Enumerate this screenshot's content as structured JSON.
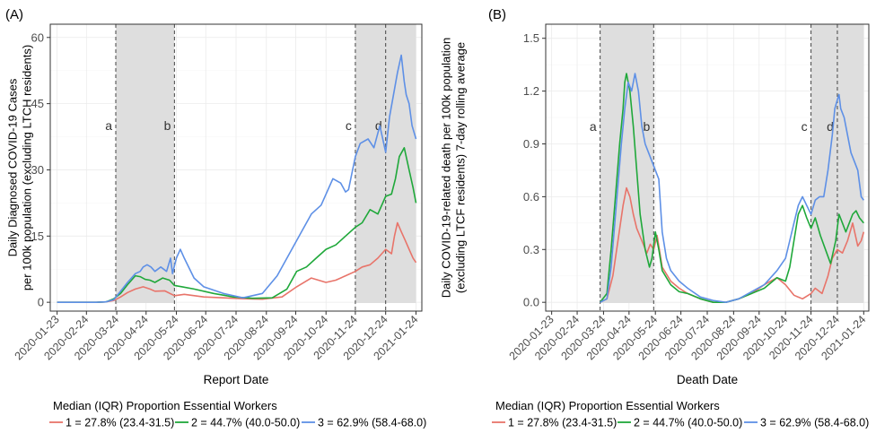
{
  "colors": {
    "g1": "#E8746A",
    "g2": "#1FA83A",
    "g3": "#5E90E6",
    "shade": "#DEDEDE",
    "grid": "#EBEBEB",
    "axis": "#333333"
  },
  "chart_data": [
    {
      "type": "line",
      "panel_label": "(A)",
      "title": "",
      "xlabel": "Report Date",
      "ylabel_line1": "Daily Diagnosed COVID-19 Cases",
      "ylabel_line2": "per 100k population (excluding LTCH residents)",
      "ylim": [
        -2,
        63
      ],
      "yticks": [
        0,
        15,
        30,
        45,
        60
      ],
      "ytick_labels": [
        "0",
        "15",
        "30",
        "45",
        "60"
      ],
      "xlim": [
        -7,
        373
      ],
      "xticks_days": [
        0,
        30,
        61,
        91,
        122,
        152,
        183,
        214,
        244,
        275,
        305,
        336,
        367
      ],
      "xtick_labels": [
        "2020-01-23",
        "2020-02-24",
        "2020-03-24",
        "2020-04-24",
        "2020-05-24",
        "2020-06-24",
        "2020-07-24",
        "2020-08-24",
        "2020-09-24",
        "2020-10-24",
        "2020-11-24",
        "2020-12-24",
        "2021-01-24"
      ],
      "shaded_regions": [
        [
          60,
          120
        ],
        [
          305,
          367
        ]
      ],
      "event_lines": [
        {
          "day": 60,
          "label": "a"
        },
        {
          "day": 120,
          "label": "b"
        },
        {
          "day": 305,
          "label": "c"
        },
        {
          "day": 336,
          "label": "d"
        }
      ],
      "event_label_y": 40,
      "legend_title": "Median (IQR) Proportion Essential Workers",
      "legend_position": "bottom",
      "series": [
        {
          "name": "1 = 27.8% (23.4-31.5)",
          "color_key": "g1",
          "x": [
            0,
            40,
            50,
            58,
            65,
            72,
            80,
            88,
            95,
            100,
            110,
            120,
            130,
            150,
            170,
            190,
            210,
            230,
            245,
            260,
            275,
            285,
            295,
            305,
            312,
            320,
            328,
            336,
            342,
            345,
            348,
            352,
            356,
            360,
            364,
            367
          ],
          "y": [
            0,
            0,
            0.1,
            0.4,
            1.2,
            2.2,
            3.0,
            3.5,
            3.0,
            2.5,
            2.6,
            1.5,
            1.8,
            1.2,
            1.0,
            0.8,
            0.7,
            1.2,
            3.5,
            5.5,
            4.5,
            5.0,
            6.0,
            7.0,
            8.0,
            8.5,
            10,
            12,
            11,
            15,
            18,
            16,
            14,
            12,
            10,
            9
          ]
        },
        {
          "name": "2 = 44.7% (40.0-50.0)",
          "color_key": "g2",
          "x": [
            0,
            40,
            50,
            58,
            65,
            72,
            80,
            85,
            90,
            95,
            100,
            108,
            115,
            120,
            128,
            140,
            160,
            180,
            200,
            220,
            235,
            245,
            255,
            265,
            275,
            285,
            295,
            305,
            312,
            320,
            328,
            336,
            342,
            346,
            350,
            355,
            360,
            364,
            367
          ],
          "y": [
            0,
            0,
            0.1,
            0.8,
            2.0,
            4.0,
            6.0,
            5.8,
            5.2,
            5.0,
            4.5,
            5.5,
            5.0,
            3.8,
            3.5,
            3.0,
            2.0,
            1.2,
            0.9,
            1.0,
            3.0,
            7.0,
            8.0,
            10.0,
            12.0,
            13.0,
            15.0,
            17.0,
            18.0,
            21.0,
            20.0,
            24.0,
            24.5,
            28.0,
            33.0,
            35.0,
            30.0,
            26.0,
            22.5
          ]
        },
        {
          "name": "3 = 62.9% (58.4-68.0)",
          "color_key": "g3",
          "x": [
            0,
            40,
            50,
            58,
            65,
            72,
            80,
            85,
            88,
            92,
            96,
            100,
            106,
            112,
            116,
            118,
            122,
            126,
            130,
            140,
            150,
            170,
            190,
            210,
            225,
            240,
            250,
            260,
            270,
            278,
            282,
            290,
            295,
            298,
            305,
            310,
            318,
            324,
            330,
            336,
            340,
            344,
            348,
            352,
            355,
            357,
            360,
            363,
            367
          ],
          "y": [
            0,
            0,
            0.1,
            0.6,
            2.5,
            4.5,
            6.5,
            7.0,
            8.0,
            8.5,
            8.0,
            7.0,
            8.0,
            7.0,
            10.0,
            6.5,
            10.0,
            12.0,
            10.0,
            5.5,
            3.5,
            2.0,
            1.0,
            2.0,
            6.0,
            12.0,
            16.0,
            20.0,
            22.0,
            26.0,
            28.0,
            27.0,
            25.0,
            25.5,
            33.0,
            36.0,
            37.0,
            35.0,
            40.0,
            34.0,
            42.0,
            47.0,
            52.0,
            56.0,
            50.0,
            47.0,
            45.0,
            40.0,
            37.0
          ]
        }
      ]
    },
    {
      "type": "line",
      "panel_label": "(B)",
      "title": "",
      "xlabel": "Death Date",
      "ylabel_line1": "Daily COVID-19-related death per 100k population",
      "ylabel_line2": "(excluding LTCF residents) 7-day rolling average",
      "ylim": [
        -0.05,
        1.58
      ],
      "yticks": [
        0,
        0.3,
        0.6,
        0.9,
        1.2,
        1.5
      ],
      "ytick_labels": [
        "0.0",
        "0.3",
        "0.6",
        "0.9",
        "1.2",
        "1.5"
      ],
      "xlim": [
        -7,
        373
      ],
      "xticks_days": [
        0,
        30,
        61,
        91,
        122,
        152,
        183,
        214,
        244,
        275,
        305,
        336,
        367
      ],
      "xtick_labels": [
        "2020-01-23",
        "2020-02-24",
        "2020-03-24",
        "2020-04-24",
        "2020-05-24",
        "2020-06-24",
        "2020-07-24",
        "2020-08-24",
        "2020-09-24",
        "2020-10-24",
        "2020-11-24",
        "2020-12-24",
        "2021-01-24"
      ],
      "shaded_regions": [
        [
          57,
          120
        ],
        [
          305,
          367
        ]
      ],
      "event_lines": [
        {
          "day": 57,
          "label": "a"
        },
        {
          "day": 120,
          "label": "b"
        },
        {
          "day": 305,
          "label": "c"
        },
        {
          "day": 336,
          "label": "d"
        }
      ],
      "event_label_y": 1.0,
      "legend_title": "Median (IQR) Proportion Essential Workers",
      "legend_position": "bottom",
      "series": [
        {
          "name": "1 = 27.8% (23.4-31.5)",
          "color_key": "g1",
          "x": [
            57,
            65,
            72,
            78,
            84,
            88,
            92,
            96,
            100,
            106,
            112,
            116,
            120,
            124,
            130,
            140,
            150,
            160,
            175,
            190,
            205,
            220,
            235,
            250,
            265,
            275,
            285,
            295,
            305,
            310,
            318,
            325,
            330,
            336,
            342,
            348,
            354,
            360,
            364,
            367
          ],
          "y": [
            0,
            0.02,
            0.15,
            0.35,
            0.55,
            0.65,
            0.6,
            0.5,
            0.42,
            0.35,
            0.28,
            0.33,
            0.3,
            0.38,
            0.2,
            0.12,
            0.08,
            0.05,
            0.02,
            0,
            0,
            0.02,
            0.05,
            0.1,
            0.14,
            0.1,
            0.04,
            0.02,
            0.05,
            0.08,
            0.05,
            0.15,
            0.25,
            0.3,
            0.28,
            0.35,
            0.45,
            0.32,
            0.35,
            0.4
          ]
        },
        {
          "name": "2 = 44.7% (40.0-50.0)",
          "color_key": "g2",
          "x": [
            57,
            65,
            70,
            75,
            80,
            84,
            86,
            88,
            92,
            96,
            100,
            104,
            110,
            115,
            118,
            122,
            126,
            130,
            140,
            150,
            160,
            175,
            190,
            205,
            220,
            235,
            250,
            265,
            275,
            280,
            285,
            290,
            295,
            300,
            305,
            310,
            316,
            322,
            328,
            334,
            338,
            342,
            346,
            350,
            354,
            358,
            362,
            367
          ],
          "y": [
            0,
            0.05,
            0.3,
            0.6,
            0.9,
            1.1,
            1.25,
            1.3,
            1.2,
            1.0,
            0.75,
            0.5,
            0.3,
            0.2,
            0.25,
            0.4,
            0.3,
            0.18,
            0.1,
            0.06,
            0.05,
            0.02,
            0,
            0,
            0.02,
            0.05,
            0.08,
            0.14,
            0.12,
            0.2,
            0.35,
            0.5,
            0.55,
            0.48,
            0.42,
            0.48,
            0.38,
            0.3,
            0.22,
            0.35,
            0.5,
            0.45,
            0.4,
            0.45,
            0.5,
            0.52,
            0.48,
            0.45
          ]
        },
        {
          "name": "3 = 62.9% (58.4-68.0)",
          "color_key": "g3",
          "x": [
            57,
            65,
            70,
            76,
            82,
            86,
            90,
            94,
            98,
            102,
            106,
            110,
            114,
            118,
            122,
            126,
            130,
            135,
            140,
            150,
            160,
            175,
            190,
            205,
            220,
            235,
            250,
            265,
            275,
            280,
            285,
            290,
            295,
            300,
            305,
            310,
            315,
            320,
            325,
            330,
            333,
            336,
            338,
            340,
            344,
            348,
            352,
            356,
            360,
            364,
            367
          ],
          "y": [
            0,
            0.02,
            0.2,
            0.55,
            0.9,
            1.1,
            1.25,
            1.2,
            1.3,
            1.2,
            1.0,
            0.9,
            0.85,
            0.8,
            0.75,
            0.7,
            0.4,
            0.25,
            0.18,
            0.12,
            0.08,
            0.03,
            0.01,
            0,
            0.02,
            0.06,
            0.1,
            0.18,
            0.25,
            0.35,
            0.45,
            0.55,
            0.6,
            0.55,
            0.5,
            0.58,
            0.6,
            0.6,
            0.75,
            0.95,
            1.1,
            1.15,
            1.18,
            1.1,
            1.05,
            0.95,
            0.85,
            0.8,
            0.75,
            0.6,
            0.58
          ]
        }
      ]
    }
  ]
}
